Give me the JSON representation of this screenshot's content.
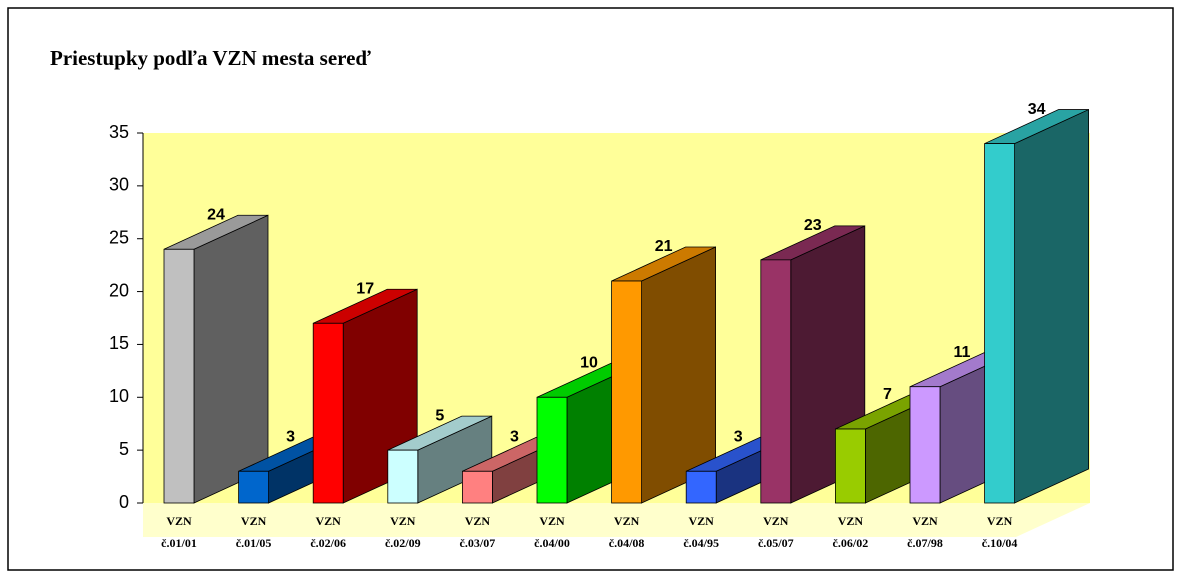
{
  "chart_data": {
    "type": "bar3d",
    "title": "Priestupky podľa VZN mesta sereď",
    "categories": [
      "VZN č.01/01",
      "VZN č.01/05",
      "VZN č.02/06",
      "VZN č.02/09",
      "VZN č.03/07",
      "VZN č.04/00",
      "VZN č.04/08",
      "VZN č.04/95",
      "VZN č.05/07",
      "VZN č.06/02",
      "VZN č.07/98",
      "VZN č.10/04"
    ],
    "values": [
      24,
      3,
      17,
      5,
      3,
      10,
      21,
      3,
      23,
      7,
      11,
      34
    ],
    "colors": [
      "#c0c0c0",
      "#0066cc",
      "#ff0000",
      "#ccffff",
      "#ff8080",
      "#00ff00",
      "#ff9900",
      "#3366ff",
      "#993366",
      "#99cc00",
      "#cc99ff",
      "#33cccc"
    ],
    "ylim": [
      0,
      35
    ],
    "yticks": [
      0,
      5,
      10,
      15,
      20,
      25,
      30,
      35
    ],
    "grid": false
  }
}
